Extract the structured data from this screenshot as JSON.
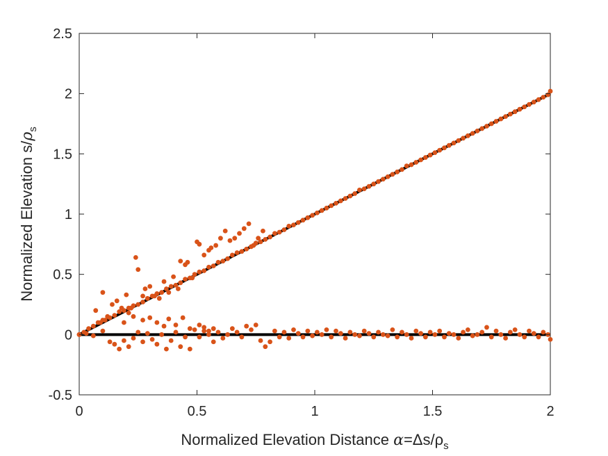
{
  "chart_data": {
    "type": "scatter",
    "title": "",
    "xlabel": {
      "text": "Normalized Elevation Distance ",
      "greek": "α",
      "rest": "=Δs/ρ",
      "sub": "s"
    },
    "ylabel": {
      "text": "Normalized Elevation s/",
      "greek": "ρ",
      "sub": "s"
    },
    "xlim": [
      0,
      2
    ],
    "ylim": [
      -0.5,
      2.5
    ],
    "xticks": [
      0,
      0.5,
      1,
      1.5,
      2
    ],
    "xtick_labels": [
      "0",
      "0.5",
      "1",
      "1.5",
      "2"
    ],
    "yticks": [
      -0.5,
      0,
      0.5,
      1,
      1.5,
      2,
      2.5
    ],
    "ytick_labels": [
      "-0.5",
      "0",
      "0.5",
      "1",
      "1.5",
      "2",
      "2.5"
    ],
    "grid": false,
    "colors": {
      "points": "#D95319",
      "lines": "#000000",
      "axes": "#262626"
    },
    "lines": [
      {
        "x": [
          0,
          2
        ],
        "y": [
          0,
          2
        ]
      },
      {
        "x": [
          0,
          2
        ],
        "y": [
          0,
          0
        ]
      }
    ],
    "series": [
      {
        "x": [
          0.0,
          0.02,
          0.04,
          0.06,
          0.08,
          0.1,
          0.11,
          0.13,
          0.15,
          0.17,
          0.19,
          0.21,
          0.23,
          0.25,
          0.27,
          0.29,
          0.31,
          0.33,
          0.35,
          0.37,
          0.39,
          0.41,
          0.43,
          0.45,
          0.47,
          0.49,
          0.51,
          0.53,
          0.55,
          0.57,
          0.59,
          0.61,
          0.63,
          0.65,
          0.67,
          0.69,
          0.71,
          0.73,
          0.75,
          0.77,
          0.79,
          0.81,
          0.83,
          0.85,
          0.87,
          0.89,
          0.91,
          0.93,
          0.95,
          0.97,
          0.99,
          1.01,
          1.03,
          1.05,
          1.07,
          1.09,
          1.11,
          1.13,
          1.15,
          1.17,
          1.19,
          1.21,
          1.23,
          1.25,
          1.27,
          1.29,
          1.31,
          1.33,
          1.35,
          1.37,
          1.39,
          1.41,
          1.43,
          1.45,
          1.47,
          1.49,
          1.51,
          1.53,
          1.55,
          1.57,
          1.59,
          1.61,
          1.63,
          1.65,
          1.67,
          1.69,
          1.71,
          1.73,
          1.75,
          1.77,
          1.79,
          1.81,
          1.83,
          1.85,
          1.87,
          1.89,
          1.91,
          1.93,
          1.95,
          1.97,
          1.99,
          2.0
        ],
        "y": [
          0.0,
          0.02,
          0.05,
          0.07,
          0.1,
          0.12,
          0.12,
          0.14,
          0.16,
          0.19,
          0.2,
          0.22,
          0.24,
          0.25,
          0.27,
          0.3,
          0.32,
          0.34,
          0.35,
          0.38,
          0.4,
          0.41,
          0.43,
          0.46,
          0.47,
          0.5,
          0.52,
          0.53,
          0.56,
          0.57,
          0.6,
          0.61,
          0.63,
          0.66,
          0.68,
          0.69,
          0.71,
          0.73,
          0.76,
          0.77,
          0.79,
          0.81,
          0.84,
          0.85,
          0.87,
          0.9,
          0.91,
          0.93,
          0.95,
          0.97,
          0.99,
          1.01,
          1.03,
          1.05,
          1.07,
          1.09,
          1.11,
          1.13,
          1.15,
          1.17,
          1.2,
          1.21,
          1.23,
          1.25,
          1.27,
          1.29,
          1.31,
          1.33,
          1.35,
          1.37,
          1.4,
          1.41,
          1.43,
          1.45,
          1.47,
          1.49,
          1.51,
          1.53,
          1.55,
          1.57,
          1.59,
          1.61,
          1.63,
          1.65,
          1.67,
          1.69,
          1.71,
          1.73,
          1.75,
          1.77,
          1.79,
          1.81,
          1.83,
          1.85,
          1.87,
          1.89,
          1.91,
          1.93,
          1.95,
          1.97,
          1.99,
          2.02
        ]
      },
      {
        "x": [
          0.07,
          0.09,
          0.1,
          0.12,
          0.14,
          0.16,
          0.18,
          0.2,
          0.22,
          0.24,
          0.25,
          0.27,
          0.28,
          0.3,
          0.32,
          0.34,
          0.36,
          0.38,
          0.4,
          0.42,
          0.43,
          0.45,
          0.46,
          0.48,
          0.5,
          0.51,
          0.53,
          0.55,
          0.56,
          0.58,
          0.6,
          0.62,
          0.64,
          0.66,
          0.68,
          0.7,
          0.72,
          0.74,
          0.76,
          0.78
        ],
        "y": [
          0.2,
          0.1,
          0.35,
          0.15,
          0.25,
          0.28,
          0.22,
          0.33,
          0.22,
          0.64,
          0.54,
          0.32,
          0.38,
          0.4,
          0.32,
          0.3,
          0.44,
          0.35,
          0.48,
          0.38,
          0.61,
          0.58,
          0.6,
          0.47,
          0.77,
          0.75,
          0.66,
          0.7,
          0.72,
          0.74,
          0.8,
          0.86,
          0.78,
          0.8,
          0.84,
          0.88,
          0.92,
          0.74,
          0.8,
          0.86
        ]
      },
      {
        "x": [
          0.0,
          0.03,
          0.06,
          0.1,
          0.13,
          0.15,
          0.17,
          0.19,
          0.21,
          0.23,
          0.25,
          0.27,
          0.29,
          0.31,
          0.33,
          0.35,
          0.37,
          0.39,
          0.41,
          0.43,
          0.45,
          0.47,
          0.49,
          0.51,
          0.53,
          0.55,
          0.57,
          0.59,
          0.61,
          0.63,
          0.65,
          0.67,
          0.69,
          0.71,
          0.73,
          0.75,
          0.77,
          0.79,
          0.81,
          0.83,
          0.85,
          0.87,
          0.89,
          0.91,
          0.93,
          0.95,
          0.97,
          0.99,
          1.01,
          1.03,
          1.05,
          1.07,
          1.09,
          1.11,
          1.13,
          1.15,
          1.17,
          1.19,
          1.21,
          1.23,
          1.25,
          1.27,
          1.29,
          1.31,
          1.33,
          1.35,
          1.37,
          1.39,
          1.41,
          1.43,
          1.45,
          1.47,
          1.49,
          1.51,
          1.53,
          1.55,
          1.57,
          1.59,
          1.61,
          1.63,
          1.65,
          1.67,
          1.69,
          1.71,
          1.73,
          1.75,
          1.77,
          1.79,
          1.81,
          1.83,
          1.85,
          1.87,
          1.89,
          1.91,
          1.93,
          1.95,
          1.97,
          1.99,
          2.0
        ],
        "y": [
          0.0,
          0.01,
          -0.01,
          0.03,
          -0.06,
          -0.08,
          -0.12,
          -0.05,
          -0.1,
          -0.03,
          0.02,
          -0.06,
          0.01,
          -0.04,
          -0.08,
          0.0,
          -0.12,
          -0.05,
          0.02,
          -0.1,
          -0.02,
          -0.12,
          0.04,
          -0.02,
          0.03,
          0.0,
          -0.06,
          0.02,
          -0.03,
          0.0,
          0.05,
          0.02,
          -0.02,
          0.07,
          0.04,
          0.08,
          -0.05,
          -0.1,
          -0.06,
          0.03,
          -0.02,
          0.02,
          -0.03,
          0.04,
          0.01,
          -0.02,
          0.03,
          -0.01,
          0.02,
          0.0,
          0.04,
          -0.02,
          0.03,
          0.01,
          -0.03,
          0.02,
          0.0,
          -0.01,
          0.03,
          0.01,
          -0.02,
          0.02,
          0.0,
          -0.01,
          0.04,
          -0.02,
          0.02,
          0.0,
          -0.03,
          0.03,
          0.01,
          -0.02,
          0.02,
          0.0,
          0.03,
          -0.02,
          0.01,
          0.0,
          -0.03,
          0.02,
          0.04,
          -0.01,
          0.0,
          0.02,
          0.06,
          -0.02,
          0.03,
          0.0,
          -0.03,
          0.02,
          0.04,
          0.0,
          -0.02,
          0.03,
          0.01,
          -0.02,
          0.02,
          0.0,
          -0.04
        ]
      },
      {
        "x": [
          0.19,
          0.21,
          0.23,
          0.27,
          0.3,
          0.33,
          0.36,
          0.38,
          0.41,
          0.44,
          0.47,
          0.51,
          0.53,
          0.55,
          0.57
        ],
        "y": [
          0.1,
          0.18,
          0.15,
          0.12,
          0.14,
          0.1,
          0.07,
          0.13,
          0.08,
          0.14,
          0.05,
          0.08,
          0.06,
          0.03,
          0.05
        ]
      }
    ]
  }
}
